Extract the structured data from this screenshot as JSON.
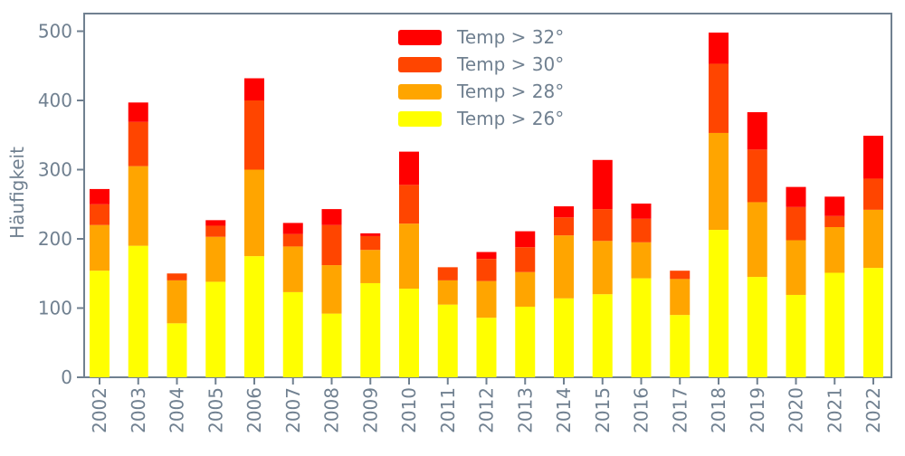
{
  "style": {
    "background": "#ffffff",
    "text_color": "#708090",
    "axis_color": "#708090"
  },
  "chart_data": {
    "type": "bar",
    "stacked": true,
    "title": "",
    "xlabel": "",
    "ylabel": "Häufigkeit",
    "grid": false,
    "ylim": [
      0,
      525
    ],
    "yticks": [
      0,
      100,
      200,
      300,
      400,
      500
    ],
    "legend_position": "upper center, no frame, top to bottom: Temp > 32°, Temp > 30°, Temp > 28°, Temp > 26°",
    "categories": [
      "2002",
      "2003",
      "2004",
      "2005",
      "2006",
      "2007",
      "2008",
      "2009",
      "2010",
      "2011",
      "2012",
      "2013",
      "2014",
      "2015",
      "2016",
      "2017",
      "2018",
      "2019",
      "2020",
      "2021",
      "2022"
    ],
    "series": [
      {
        "name": "Temp > 26°",
        "color": "#FFFF00",
        "values": [
          154,
          190,
          78,
          138,
          175,
          123,
          92,
          136,
          128,
          105,
          86,
          102,
          114,
          120,
          143,
          90,
          213,
          145,
          119,
          151,
          158
        ]
      },
      {
        "name": "Temp > 28°",
        "color": "#FFA500",
        "values": [
          66,
          115,
          62,
          65,
          125,
          66,
          70,
          48,
          94,
          35,
          53,
          50,
          91,
          77,
          52,
          52,
          140,
          108,
          79,
          66,
          84
        ]
      },
      {
        "name": "Temp > 30°",
        "color": "#FF4500",
        "values": [
          30,
          64,
          10,
          16,
          100,
          18,
          58,
          20,
          56,
          19,
          32,
          36,
          26,
          46,
          34,
          12,
          100,
          76,
          48,
          16,
          45
        ]
      },
      {
        "name": "Temp > 32°",
        "color": "#FF0000",
        "values": [
          22,
          28,
          0,
          8,
          32,
          16,
          23,
          4,
          48,
          0,
          10,
          23,
          16,
          71,
          22,
          0,
          45,
          54,
          29,
          28,
          62
        ]
      }
    ],
    "totals": [
      272,
      397,
      150,
      227,
      432,
      223,
      243,
      208,
      326,
      159,
      181,
      211,
      247,
      314,
      251,
      154,
      498,
      383,
      275,
      261,
      349
    ]
  }
}
